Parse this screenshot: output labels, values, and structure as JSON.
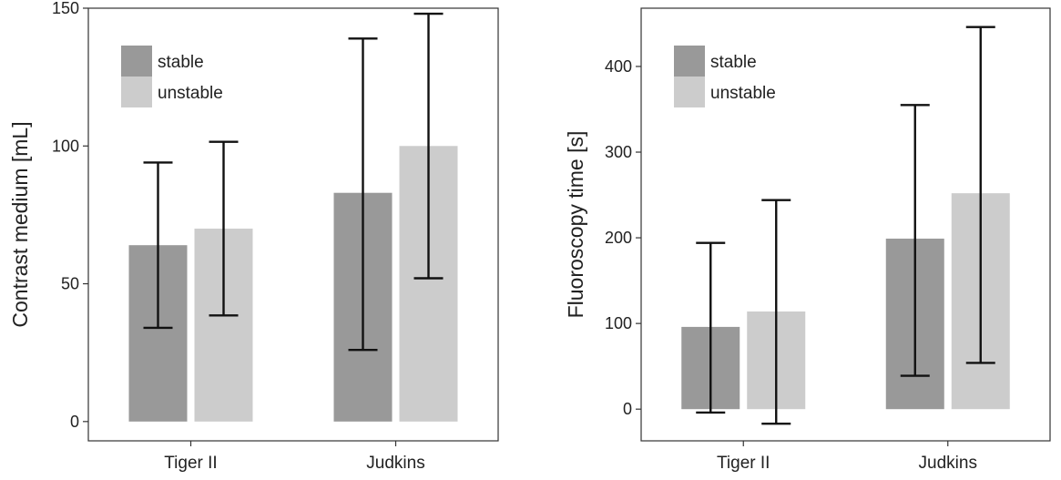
{
  "chart_data": [
    {
      "type": "bar",
      "ylabel": "Contrast medium [mL]",
      "xlabel": "",
      "categories": [
        "Tiger II",
        "Judkins"
      ],
      "series": [
        {
          "name": "stable",
          "values": [
            64,
            83
          ],
          "err_low": [
            34,
            26
          ],
          "err_high": [
            94,
            139
          ],
          "color": "#999999"
        },
        {
          "name": "unstable",
          "values": [
            70,
            100
          ],
          "err_low": [
            38.5,
            52
          ],
          "err_high": [
            101.5,
            148
          ],
          "color": "#cccccc"
        }
      ],
      "yticks": [
        0,
        50,
        100,
        150
      ],
      "ylim": [
        -7,
        150
      ],
      "legend_position": "top-left",
      "grid": false
    },
    {
      "type": "bar",
      "ylabel": "Fluoroscopy time [s]",
      "xlabel": "",
      "categories": [
        "Tiger II",
        "Judkins"
      ],
      "series": [
        {
          "name": "stable",
          "values": [
            96,
            199
          ],
          "err_low": [
            -4,
            39
          ],
          "err_high": [
            194,
            355
          ],
          "color": "#999999"
        },
        {
          "name": "unstable",
          "values": [
            114,
            252
          ],
          "err_low": [
            -17,
            54
          ],
          "err_high": [
            244,
            446
          ],
          "color": "#cccccc"
        }
      ],
      "yticks": [
        0,
        100,
        200,
        300,
        400
      ],
      "ylim": [
        -37,
        468
      ],
      "legend_position": "top-left",
      "grid": false
    }
  ]
}
